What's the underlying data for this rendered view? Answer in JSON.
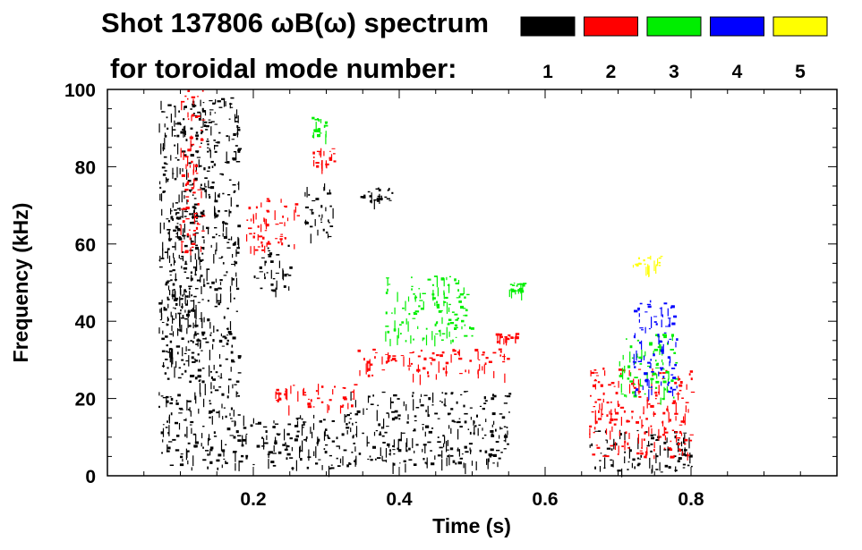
{
  "chart_data": {
    "type": "spectrogram",
    "title_line1": "Shot 137806 ωB(ω) spectrum",
    "title_line2": "for toroidal mode number:",
    "xlabel": "Time (s)",
    "ylabel": "Frequency (kHz)",
    "xlim": [
      0.0,
      1.0
    ],
    "ylim": [
      0,
      100
    ],
    "x_ticks": [
      {
        "value": 0.2,
        "label": "0.2"
      },
      {
        "value": 0.4,
        "label": "0.4"
      },
      {
        "value": 0.6,
        "label": "0.6"
      },
      {
        "value": 0.8,
        "label": "0.8"
      }
    ],
    "y_ticks": [
      {
        "value": 0,
        "label": "0"
      },
      {
        "value": 20,
        "label": "20"
      },
      {
        "value": 40,
        "label": "40"
      },
      {
        "value": 60,
        "label": "60"
      },
      {
        "value": 80,
        "label": "80"
      },
      {
        "value": 100,
        "label": "100"
      }
    ],
    "legend": [
      {
        "mode": "1",
        "color": "#000000"
      },
      {
        "mode": "2",
        "color": "#ff0000"
      },
      {
        "mode": "3",
        "color": "#00ee00"
      },
      {
        "mode": "4",
        "color": "#0000ff"
      },
      {
        "mode": "5",
        "color": "#ffff00"
      }
    ],
    "regions": [
      {
        "mode": "1",
        "name": "n1-early-burst",
        "t": [
          0.08,
          0.13
        ],
        "f": [
          30,
          70
        ]
      },
      {
        "mode": "1",
        "name": "n1-early-spikes",
        "t": [
          0.07,
          0.18
        ],
        "f": [
          2,
          98
        ]
      },
      {
        "mode": "1",
        "name": "n1-low-0.2-0.33",
        "t": [
          0.18,
          0.33
        ],
        "f": [
          2,
          16
        ]
      },
      {
        "mode": "1",
        "name": "n1-low-0.33-0.55",
        "t": [
          0.33,
          0.55
        ],
        "f": [
          3,
          22
        ]
      },
      {
        "mode": "1",
        "name": "n1-mid-0.2-0.25",
        "t": [
          0.2,
          0.25
        ],
        "f": [
          48,
          60
        ]
      },
      {
        "mode": "1",
        "name": "n1-blob-0.28",
        "t": [
          0.27,
          0.31
        ],
        "f": [
          62,
          76
        ]
      },
      {
        "mode": "1",
        "name": "n1-line-73kHz",
        "t": [
          0.34,
          0.39
        ],
        "f": [
          71,
          75
        ]
      },
      {
        "mode": "1",
        "name": "n1-late",
        "t": [
          0.66,
          0.8
        ],
        "f": [
          1,
          12
        ]
      },
      {
        "mode": "2",
        "name": "n2-chirp-0.19-0.26",
        "t": [
          0.19,
          0.26
        ],
        "f": [
          58,
          72
        ]
      },
      {
        "mode": "2",
        "name": "n2-line-0.28-0.31",
        "t": [
          0.28,
          0.31
        ],
        "f": [
          80,
          85
        ]
      },
      {
        "mode": "2",
        "name": "n2-early",
        "t": [
          0.1,
          0.13
        ],
        "f": [
          58,
          100
        ]
      },
      {
        "mode": "2",
        "name": "n2-sweep-0.23-0.34",
        "t": [
          0.23,
          0.34
        ],
        "f": [
          17,
          24
        ]
      },
      {
        "mode": "2",
        "name": "n2-descend-0.34-0.55",
        "t": [
          0.34,
          0.55
        ],
        "f": [
          26,
          33
        ]
      },
      {
        "mode": "2",
        "name": "n2-late",
        "t": [
          0.66,
          0.8
        ],
        "f": [
          5,
          28
        ]
      },
      {
        "mode": "2",
        "name": "n2-line-36kHz",
        "t": [
          0.53,
          0.56
        ],
        "f": [
          35,
          37
        ]
      },
      {
        "mode": "3",
        "name": "n3-descend-0.38-0.5",
        "t": [
          0.38,
          0.5
        ],
        "f": [
          35,
          52
        ]
      },
      {
        "mode": "3",
        "name": "n3-line-0.56",
        "t": [
          0.55,
          0.57
        ],
        "f": [
          48,
          50
        ]
      },
      {
        "mode": "3",
        "name": "n3-early",
        "t": [
          0.28,
          0.3
        ],
        "f": [
          88,
          93
        ]
      },
      {
        "mode": "3",
        "name": "n3-late",
        "t": [
          0.7,
          0.78
        ],
        "f": [
          20,
          37
        ]
      },
      {
        "mode": "4",
        "name": "n4-late",
        "t": [
          0.72,
          0.78
        ],
        "f": [
          22,
          46
        ]
      },
      {
        "mode": "5",
        "name": "n5-late",
        "t": [
          0.72,
          0.76
        ],
        "f": [
          54,
          57
        ]
      }
    ]
  }
}
